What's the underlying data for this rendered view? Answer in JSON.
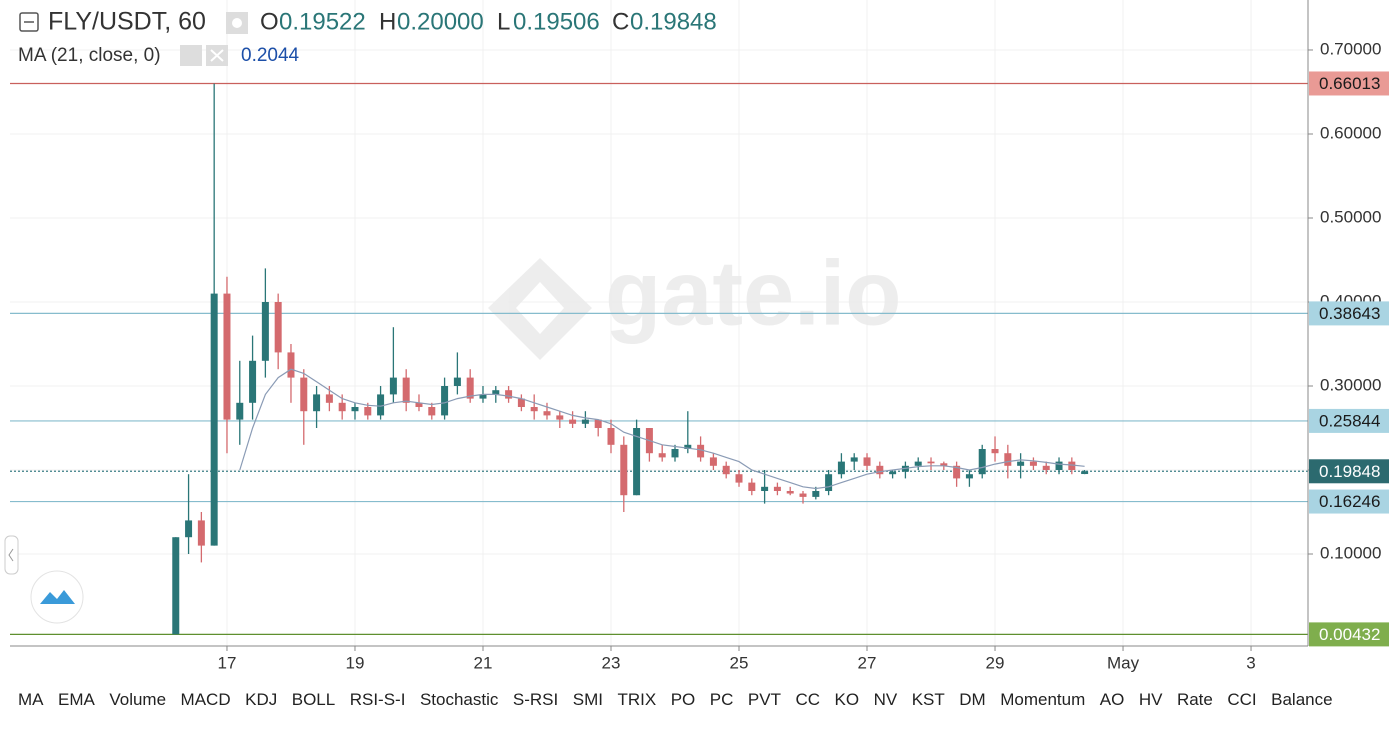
{
  "chart_data": {
    "type": "candlestick",
    "symbol": "FLY/USDT, 60",
    "ohlc_letters": [
      "O",
      "H",
      "L",
      "C"
    ],
    "ohlc_labels": [
      "0.19522",
      "0.20000",
      "0.19506",
      "0.19848"
    ],
    "watermark": "gate.io",
    "up_color": "#2a7677",
    "down_color": "#d46a6e",
    "x": [
      16.2,
      16.4,
      16.6,
      16.8,
      17,
      17.2,
      17.4,
      17.6,
      17.8,
      18,
      18.2,
      18.4,
      18.6,
      18.8,
      19,
      19.2,
      19.4,
      19.6,
      19.8,
      20,
      20.2,
      20.4,
      20.6,
      20.8,
      21,
      21.2,
      21.4,
      21.6,
      21.8,
      22,
      22.2,
      22.4,
      22.6,
      22.8,
      23,
      23.2,
      23.4,
      23.6,
      23.8,
      24,
      24.2,
      24.4,
      24.6,
      24.8,
      25,
      25.2,
      25.4,
      25.6,
      25.8,
      26,
      26.2,
      26.4,
      26.6,
      26.8,
      27,
      27.2,
      27.4,
      27.6,
      27.8,
      28,
      28.2,
      28.4,
      28.6,
      28.8,
      29,
      29.2,
      29.4,
      29.6,
      29.8,
      30,
      30.2,
      30.4
    ],
    "open": [
      0.00432,
      0.12,
      0.14,
      0.11,
      0.41,
      0.26,
      0.28,
      0.33,
      0.4,
      0.34,
      0.31,
      0.27,
      0.29,
      0.28,
      0.27,
      0.275,
      0.265,
      0.29,
      0.31,
      0.28,
      0.275,
      0.265,
      0.3,
      0.31,
      0.285,
      0.29,
      0.295,
      0.285,
      0.275,
      0.27,
      0.265,
      0.26,
      0.255,
      0.26,
      0.25,
      0.23,
      0.17,
      0.25,
      0.22,
      0.215,
      0.225,
      0.23,
      0.215,
      0.205,
      0.195,
      0.185,
      0.175,
      0.18,
      0.175,
      0.172,
      0.168,
      0.175,
      0.195,
      0.21,
      0.215,
      0.205,
      0.195,
      0.198,
      0.205,
      0.21,
      0.208,
      0.205,
      0.19,
      0.195,
      0.225,
      0.22,
      0.205,
      0.21,
      0.205,
      0.2,
      0.21,
      0.19522
    ],
    "high": [
      0.12,
      0.195,
      0.15,
      0.66,
      0.43,
      0.33,
      0.36,
      0.44,
      0.41,
      0.35,
      0.32,
      0.3,
      0.3,
      0.29,
      0.28,
      0.28,
      0.3,
      0.37,
      0.32,
      0.29,
      0.28,
      0.31,
      0.34,
      0.32,
      0.3,
      0.3,
      0.3,
      0.29,
      0.29,
      0.28,
      0.27,
      0.27,
      0.27,
      0.26,
      0.26,
      0.24,
      0.26,
      0.25,
      0.23,
      0.23,
      0.27,
      0.24,
      0.22,
      0.21,
      0.2,
      0.19,
      0.2,
      0.185,
      0.18,
      0.175,
      0.18,
      0.2,
      0.22,
      0.22,
      0.22,
      0.21,
      0.2,
      0.21,
      0.215,
      0.215,
      0.21,
      0.21,
      0.2,
      0.23,
      0.24,
      0.23,
      0.22,
      0.215,
      0.21,
      0.215,
      0.215,
      0.2
    ],
    "low": [
      0.00432,
      0.1,
      0.09,
      0.11,
      0.22,
      0.23,
      0.26,
      0.31,
      0.32,
      0.28,
      0.23,
      0.25,
      0.27,
      0.26,
      0.26,
      0.26,
      0.26,
      0.28,
      0.27,
      0.27,
      0.26,
      0.26,
      0.29,
      0.28,
      0.28,
      0.28,
      0.28,
      0.27,
      0.26,
      0.26,
      0.25,
      0.25,
      0.25,
      0.24,
      0.22,
      0.15,
      0.17,
      0.21,
      0.21,
      0.21,
      0.22,
      0.21,
      0.2,
      0.19,
      0.18,
      0.17,
      0.16,
      0.17,
      0.17,
      0.16,
      0.165,
      0.17,
      0.19,
      0.2,
      0.2,
      0.19,
      0.19,
      0.19,
      0.2,
      0.2,
      0.2,
      0.18,
      0.18,
      0.19,
      0.21,
      0.19,
      0.19,
      0.2,
      0.195,
      0.195,
      0.195,
      0.19506
    ],
    "close": [
      0.12,
      0.14,
      0.11,
      0.41,
      0.26,
      0.28,
      0.33,
      0.4,
      0.34,
      0.31,
      0.27,
      0.29,
      0.28,
      0.27,
      0.275,
      0.265,
      0.29,
      0.31,
      0.28,
      0.275,
      0.265,
      0.3,
      0.31,
      0.285,
      0.29,
      0.295,
      0.285,
      0.275,
      0.27,
      0.265,
      0.26,
      0.255,
      0.26,
      0.25,
      0.23,
      0.17,
      0.25,
      0.22,
      0.215,
      0.225,
      0.23,
      0.215,
      0.205,
      0.195,
      0.185,
      0.175,
      0.18,
      0.175,
      0.172,
      0.168,
      0.175,
      0.195,
      0.21,
      0.215,
      0.205,
      0.195,
      0.198,
      0.205,
      0.21,
      0.208,
      0.205,
      0.19,
      0.195,
      0.225,
      0.22,
      0.205,
      0.21,
      0.205,
      0.2,
      0.21,
      0.2,
      0.19848
    ],
    "ma": {
      "label": "MA (21, close, 0)",
      "value": 0.2044,
      "color": "#8a9bb5",
      "values": [
        null,
        null,
        null,
        null,
        null,
        0.2,
        0.25,
        0.29,
        0.31,
        0.32,
        0.315,
        0.305,
        0.295,
        0.285,
        0.28,
        0.277,
        0.276,
        0.28,
        0.282,
        0.28,
        0.278,
        0.28,
        0.285,
        0.288,
        0.29,
        0.29,
        0.288,
        0.285,
        0.28,
        0.275,
        0.27,
        0.265,
        0.262,
        0.26,
        0.255,
        0.245,
        0.24,
        0.235,
        0.23,
        0.228,
        0.226,
        0.224,
        0.22,
        0.215,
        0.21,
        0.2,
        0.195,
        0.19,
        0.185,
        0.18,
        0.178,
        0.18,
        0.185,
        0.19,
        0.195,
        0.198,
        0.2,
        0.202,
        0.204,
        0.205,
        0.205,
        0.203,
        0.2,
        0.203,
        0.207,
        0.21,
        0.212,
        0.211,
        0.209,
        0.207,
        0.206,
        0.2044
      ]
    },
    "price_lines": [
      {
        "value": 0.66013,
        "color": "#c9605c",
        "fill": "#e99a95",
        "text_color": "#1a1a1a",
        "style": "solid"
      },
      {
        "value": 0.38643,
        "color": "#86bccd",
        "fill": "#a9d4e2",
        "text_color": "#1a1a1a",
        "style": "solid"
      },
      {
        "value": 0.25844,
        "color": "#86bccd",
        "fill": "#a9d4e2",
        "text_color": "#1a1a1a",
        "style": "solid"
      },
      {
        "value": 0.19848,
        "color": "#3b7f86",
        "fill": "#2c6a6f",
        "text_color": "#ffffff",
        "style": "dotted"
      },
      {
        "value": 0.16246,
        "color": "#86bccd",
        "fill": "#a9d4e2",
        "text_color": "#1a1a1a",
        "style": "solid"
      },
      {
        "value": 0.00432,
        "color": "#5f8f2e",
        "fill": "#7fae4d",
        "text_color": "#ffffff",
        "style": "solid"
      }
    ],
    "xlim": [
      13.61,
      33.89
    ],
    "xticks": [
      17,
      19,
      21,
      23,
      25,
      27,
      29,
      {
        "value": 31,
        "label": "May"
      },
      {
        "value": 33,
        "label": "3"
      }
    ],
    "ylim": [
      -0.0095,
      0.7595
    ],
    "yticks": [
      {
        "value": 0.1,
        "label": "0.10000"
      },
      {
        "value": 0.2,
        "label": "0.20000"
      },
      {
        "value": 0.3,
        "label": "0.30000"
      },
      {
        "value": 0.4,
        "label": "0.40000"
      },
      {
        "value": 0.5,
        "label": "0.50000"
      },
      {
        "value": 0.6,
        "label": "0.60000"
      },
      {
        "value": 0.7,
        "label": "0.70000"
      }
    ],
    "grid": true,
    "indicators": [
      "MA",
      "EMA",
      "Volume",
      "MACD",
      "KDJ",
      "BOLL",
      "RSI-S-I",
      "Stochastic",
      "S-RSI",
      "SMI",
      "TRIX",
      "PO",
      "PC",
      "PVT",
      "CC",
      "KO",
      "NV",
      "KST",
      "DM",
      "Momentum",
      "AO",
      "HV",
      "Rate",
      "CCI",
      "Balance"
    ]
  }
}
